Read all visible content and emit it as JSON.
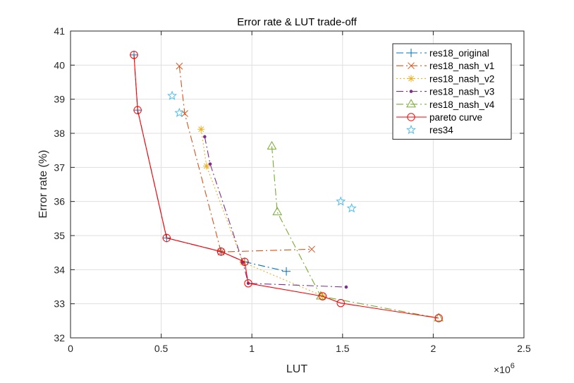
{
  "chart_data": {
    "type": "line",
    "title": "Error rate & LUT trade-off",
    "xlabel": "LUT",
    "ylabel": "Error rate (%)",
    "x_exponent_label": "×10",
    "x_exponent_power": "6",
    "xlim": [
      0,
      2500000
    ],
    "ylim": [
      32,
      41
    ],
    "xticks": [
      0,
      500000,
      1000000,
      1500000,
      2000000,
      2500000
    ],
    "xtick_labels": [
      "0",
      "0.5",
      "1",
      "1.5",
      "2",
      "2.5"
    ],
    "yticks": [
      32,
      33,
      34,
      35,
      36,
      37,
      38,
      39,
      40,
      41
    ],
    "ytick_labels": [
      "32",
      "33",
      "34",
      "35",
      "36",
      "37",
      "38",
      "39",
      "40",
      "41"
    ],
    "grid": true,
    "legend_position": "top-right",
    "series": [
      {
        "name": "res18_original",
        "color": "#0072BD",
        "dash": "10,4,2,4",
        "marker": "plus",
        "x": [
          350000,
          370000,
          530000,
          830000,
          960000,
          1190000
        ],
        "y": [
          40.3,
          38.68,
          34.93,
          34.53,
          34.23,
          33.95
        ]
      },
      {
        "name": "res18_nash_v1",
        "color": "#D95319",
        "dash": "10,4,2,4",
        "marker": "x",
        "x": [
          600000,
          630000,
          830000,
          1330000
        ],
        "y": [
          39.97,
          38.58,
          34.52,
          34.6
        ]
      },
      {
        "name": "res18_nash_v2",
        "color": "#EDB120",
        "dash": "2,3",
        "marker": "asterisk",
        "x": [
          720000,
          750000,
          950000,
          1390000
        ],
        "y": [
          38.12,
          37.04,
          34.22,
          33.23
        ]
      },
      {
        "name": "res18_nash_v3",
        "color": "#7E2F8E",
        "dash": "10,4,2,4",
        "marker": "dot",
        "x": [
          740000,
          770000,
          950000,
          980000,
          1520000
        ],
        "y": [
          37.9,
          37.1,
          34.22,
          33.6,
          33.49
        ]
      },
      {
        "name": "res18_nash_v4",
        "color": "#77AC30",
        "dash": "10,4,2,4",
        "marker": "triangle",
        "x": [
          1110000,
          1140000,
          1380000,
          2030000
        ],
        "y": [
          37.62,
          35.69,
          33.22,
          32.58
        ]
      },
      {
        "name": "pareto curve",
        "color": "#FF0000",
        "dash": "",
        "marker": "circle",
        "x": [
          350000,
          370000,
          530000,
          830000,
          960000,
          980000,
          1390000,
          1490000,
          2030000
        ],
        "y": [
          40.3,
          38.68,
          34.93,
          34.53,
          34.23,
          33.6,
          33.22,
          33.02,
          32.58
        ]
      },
      {
        "name": "res34",
        "color": "#4DBEEE",
        "dash": "none",
        "marker": "pentagram",
        "x": [
          560000,
          600000,
          1490000,
          1550000
        ],
        "y": [
          39.1,
          38.6,
          36.0,
          35.8
        ]
      }
    ]
  }
}
